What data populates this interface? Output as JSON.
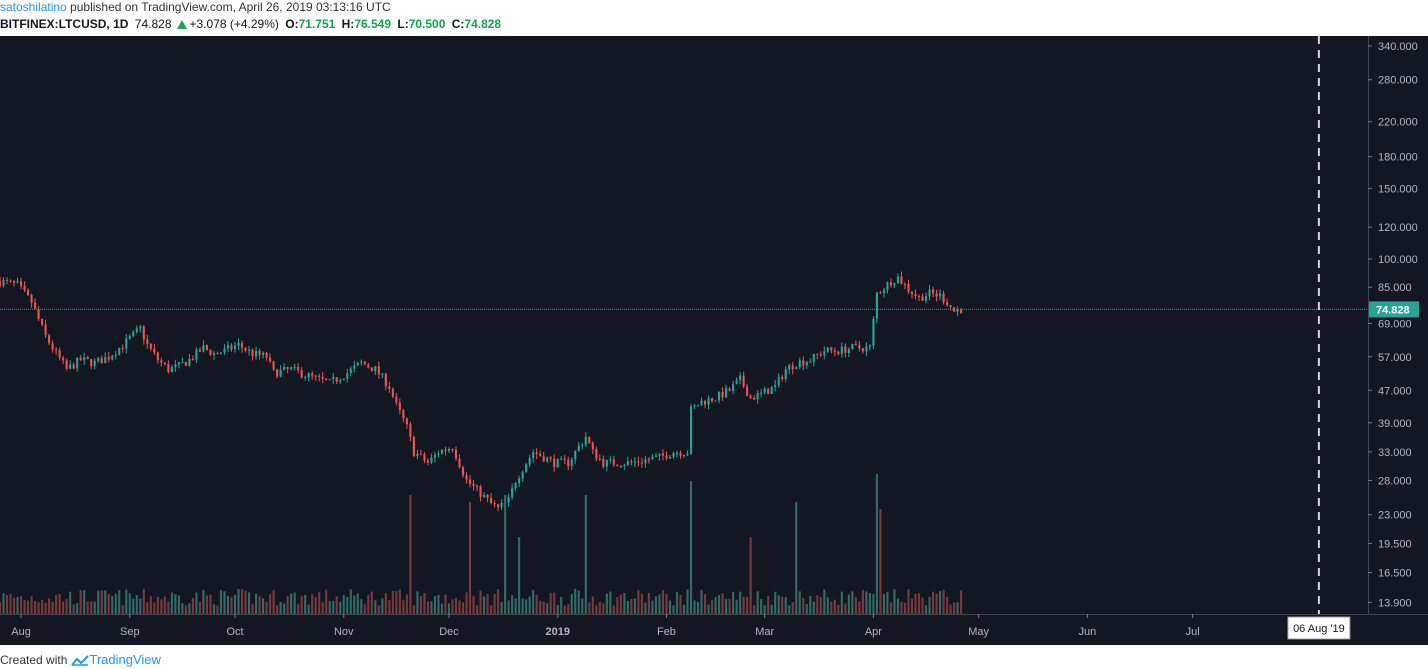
{
  "header": {
    "author": "satoshilatino",
    "published_text": " published on TradingView.com, April 26, 2019 03:13:16 UTC",
    "symbol": "BITFINEX:LTCUSD, 1D",
    "last": "74.828",
    "change": "+3.078 (+4.29%)",
    "o_label": "O:",
    "o_value": "71.751",
    "h_label": "H:",
    "h_value": "76.549",
    "l_label": "L:",
    "l_value": "70.500",
    "c_label": "C:",
    "c_value": "74.828"
  },
  "footer": {
    "created": "Created with",
    "brand": "TradingView"
  },
  "colors": {
    "background": "#131722",
    "up": "#26a69a",
    "down": "#ef5350",
    "vol_up": "#336b66",
    "vol_down": "#7a3a3b",
    "price_line": "#26a69a",
    "axis_text": "#b2b5be"
  },
  "chart_data": {
    "type": "candlestick",
    "symbol": "BITFINEX:LTCUSD",
    "interval": "1D",
    "y_scale": "log",
    "ylim": [
      13.0,
      360.0
    ],
    "y_ticks": [
      "340.000",
      "280.000",
      "220.000",
      "180.000",
      "150.000",
      "120.000",
      "100.000",
      "85.000",
      "69.000",
      "57.000",
      "47.000",
      "39.000",
      "33.000",
      "28.000",
      "23.000",
      "19.500",
      "16.500",
      "13.900"
    ],
    "x_range": [
      "2018-07-26",
      "2019-08-20"
    ],
    "x_ticks": [
      {
        "label": "Aug",
        "date": "2018-08-01"
      },
      {
        "label": "Sep",
        "date": "2018-09-01"
      },
      {
        "label": "Oct",
        "date": "2018-10-01"
      },
      {
        "label": "Nov",
        "date": "2018-11-01"
      },
      {
        "label": "Dec",
        "date": "2018-12-01"
      },
      {
        "label": "2019",
        "date": "2019-01-01"
      },
      {
        "label": "Feb",
        "date": "2019-02-01"
      },
      {
        "label": "Mar",
        "date": "2019-03-01"
      },
      {
        "label": "Apr",
        "date": "2019-04-01"
      },
      {
        "label": "May",
        "date": "2019-05-01"
      },
      {
        "label": "Jun",
        "date": "2019-06-01"
      },
      {
        "label": "Jul",
        "date": "2019-07-01"
      }
    ],
    "current_price": 74.828,
    "current_price_label": "74.828",
    "marker_date": "2019-08-06",
    "marker_label": "06 Aug '19",
    "price_path": [
      [
        "2018-07-26",
        88
      ],
      [
        "2018-07-31",
        86
      ],
      [
        "2018-08-04",
        78
      ],
      [
        "2018-08-08",
        64
      ],
      [
        "2018-08-11",
        58
      ],
      [
        "2018-08-14",
        53
      ],
      [
        "2018-08-18",
        56
      ],
      [
        "2018-08-22",
        55
      ],
      [
        "2018-08-26",
        57
      ],
      [
        "2018-08-30",
        61
      ],
      [
        "2018-09-04",
        67
      ],
      [
        "2018-09-06",
        61
      ],
      [
        "2018-09-09",
        56
      ],
      [
        "2018-09-12",
        53
      ],
      [
        "2018-09-15",
        54
      ],
      [
        "2018-09-18",
        56
      ],
      [
        "2018-09-22",
        60
      ],
      [
        "2018-09-25",
        58
      ],
      [
        "2018-09-28",
        59
      ],
      [
        "2018-10-02",
        61
      ],
      [
        "2018-10-06",
        58
      ],
      [
        "2018-10-10",
        57
      ],
      [
        "2018-10-12",
        52
      ],
      [
        "2018-10-17",
        53
      ],
      [
        "2018-10-22",
        51
      ],
      [
        "2018-10-28",
        49
      ],
      [
        "2018-11-02",
        52
      ],
      [
        "2018-11-06",
        55
      ],
      [
        "2018-11-10",
        53
      ],
      [
        "2018-11-14",
        48
      ],
      [
        "2018-11-16",
        43
      ],
      [
        "2018-11-19",
        38
      ],
      [
        "2018-11-21",
        33
      ],
      [
        "2018-11-25",
        31
      ],
      [
        "2018-11-28",
        33
      ],
      [
        "2018-12-02",
        34
      ],
      [
        "2018-12-06",
        28
      ],
      [
        "2018-12-10",
        26
      ],
      [
        "2018-12-13",
        24.5
      ],
      [
        "2018-12-15",
        23.8
      ],
      [
        "2018-12-18",
        25
      ],
      [
        "2018-12-20",
        28
      ],
      [
        "2018-12-23",
        31
      ],
      [
        "2018-12-25",
        33
      ],
      [
        "2018-12-28",
        32
      ],
      [
        "2018-12-31",
        31
      ],
      [
        "2019-01-04",
        31
      ],
      [
        "2019-01-07",
        34
      ],
      [
        "2019-01-09",
        36
      ],
      [
        "2019-01-11",
        33
      ],
      [
        "2019-01-14",
        31
      ],
      [
        "2019-01-18",
        31
      ],
      [
        "2019-01-22",
        31
      ],
      [
        "2019-01-26",
        31.5
      ],
      [
        "2019-01-30",
        32
      ],
      [
        "2019-02-03",
        33
      ],
      [
        "2019-02-07",
        33
      ],
      [
        "2019-02-08",
        42
      ],
      [
        "2019-02-11",
        44
      ],
      [
        "2019-02-15",
        45
      ],
      [
        "2019-02-19",
        47
      ],
      [
        "2019-02-22",
        50
      ],
      [
        "2019-02-25",
        45
      ],
      [
        "2019-02-28",
        46
      ],
      [
        "2019-03-04",
        48
      ],
      [
        "2019-03-07",
        53
      ],
      [
        "2019-03-10",
        55
      ],
      [
        "2019-03-14",
        56
      ],
      [
        "2019-03-18",
        59
      ],
      [
        "2019-03-22",
        59
      ],
      [
        "2019-03-26",
        60
      ],
      [
        "2019-03-31",
        60
      ],
      [
        "2019-04-02",
        82
      ],
      [
        "2019-04-06",
        88
      ],
      [
        "2019-04-08",
        90
      ],
      [
        "2019-04-11",
        84
      ],
      [
        "2019-04-14",
        80
      ],
      [
        "2019-04-17",
        82
      ],
      [
        "2019-04-20",
        81
      ],
      [
        "2019-04-22",
        78
      ],
      [
        "2019-04-24",
        74
      ],
      [
        "2019-04-26",
        74.8
      ]
    ],
    "volume_peaks": [
      [
        "2018-11-20",
        0.85
      ],
      [
        "2018-12-07",
        0.8
      ],
      [
        "2018-12-17",
        0.85
      ],
      [
        "2018-12-21",
        0.55
      ],
      [
        "2019-01-09",
        0.85
      ],
      [
        "2019-02-08",
        0.95
      ],
      [
        "2019-02-25",
        0.55
      ],
      [
        "2019-03-10",
        0.8
      ],
      [
        "2019-04-02",
        1.0
      ],
      [
        "2019-04-03",
        0.75
      ]
    ],
    "grid": false,
    "legend": "none"
  }
}
